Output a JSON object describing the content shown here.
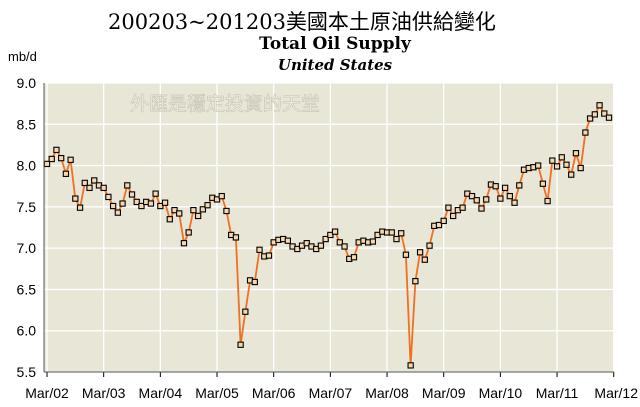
{
  "header": {
    "main_title": "200203~201203美國本土原油供給變化",
    "chart_title": "Total Oil Supply",
    "chart_subtitle": "United States",
    "unit_label": "mb/d",
    "watermark": "外匯是穩定投資的天堂"
  },
  "colors": {
    "plot_background": "#e8e6d6",
    "grid": "#ffffff",
    "line": "#f07020",
    "marker_fill": "#f4d8b0",
    "marker_stroke": "#000000"
  },
  "chart_data": {
    "type": "line",
    "title": "Total Oil Supply",
    "subtitle": "United States",
    "ylabel": "mb/d",
    "ylim": [
      5.5,
      9.0
    ],
    "yticks": [
      "9.0",
      "8.5",
      "8.0",
      "7.5",
      "7.0",
      "6.5",
      "6.0",
      "5.5"
    ],
    "x_start": "Mar/02",
    "x_end": "Mar/12",
    "xticks": [
      "Mar/02",
      "Mar/03",
      "Mar/04",
      "Mar/05",
      "Mar/06",
      "Mar/07",
      "Mar/08",
      "Mar/09",
      "Mar/10",
      "Mar/11",
      "Mar/12"
    ],
    "grid": true,
    "markers": "square",
    "series": [
      {
        "values": [
          8.02,
          8.08,
          8.19,
          8.09,
          7.9,
          8.07,
          7.6,
          7.49,
          7.79,
          7.73,
          7.82,
          7.76,
          7.73,
          7.62,
          7.51,
          7.43,
          7.54,
          7.76,
          7.65,
          7.56,
          7.51,
          7.56,
          7.54,
          7.66,
          7.51,
          7.55,
          7.35,
          7.46,
          7.42,
          7.06,
          7.19,
          7.46,
          7.39,
          7.47,
          7.52,
          7.61,
          7.59,
          7.63,
          7.45,
          7.16,
          7.13,
          5.83,
          6.23,
          6.61,
          6.59,
          6.98,
          6.9,
          6.91,
          7.07,
          7.1,
          7.11,
          7.09,
          7.02,
          6.99,
          7.03,
          7.06,
          7.02,
          6.99,
          7.03,
          7.11,
          7.16,
          7.2,
          7.07,
          7.02,
          6.87,
          6.89,
          7.07,
          7.09,
          7.07,
          7.08,
          7.16,
          7.2,
          7.19,
          7.19,
          7.11,
          7.18,
          6.92,
          5.58,
          6.6,
          6.95,
          6.86,
          7.03,
          7.27,
          7.28,
          7.33,
          7.49,
          7.39,
          7.46,
          7.49,
          7.66,
          7.63,
          7.58,
          7.48,
          7.59,
          7.77,
          7.75,
          7.6,
          7.73,
          7.63,
          7.55,
          7.76,
          7.95,
          7.97,
          7.98,
          8.0,
          7.78,
          7.57,
          8.06,
          7.99,
          8.1,
          8.01,
          7.89,
          8.15,
          7.97,
          8.4,
          8.57,
          8.62,
          8.73,
          8.63,
          8.58
        ]
      }
    ]
  }
}
